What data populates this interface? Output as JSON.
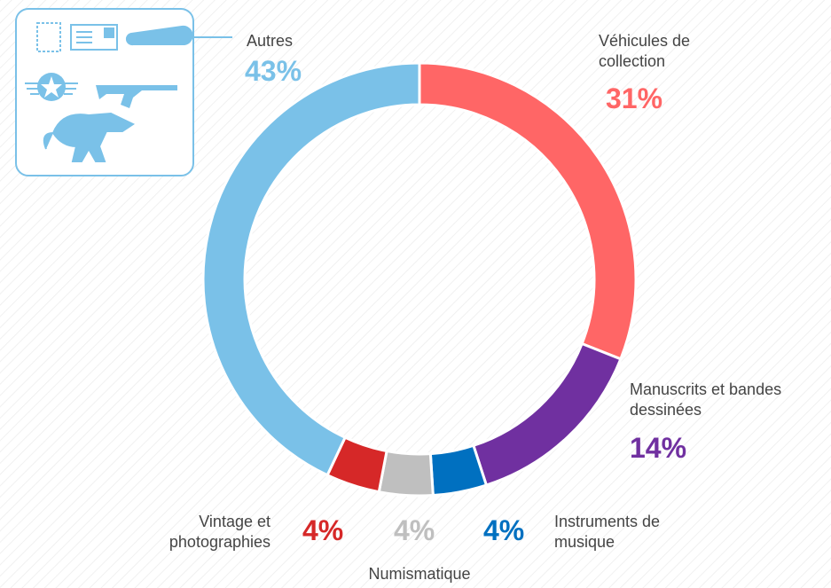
{
  "chart_data": {
    "type": "donut",
    "categories": [
      "Véhicules de collection",
      "Manuscrits et bandes dessinées",
      "Instruments de musique",
      "Numismatique",
      "Vintage et photographies",
      "Autres"
    ],
    "values": [
      31,
      14,
      4,
      4,
      4,
      43
    ],
    "value_labels": [
      "31%",
      "14%",
      "4%",
      "4%",
      "4%",
      "43%"
    ],
    "colors": [
      "#ff6666",
      "#7030a0",
      "#0070c0",
      "#bfbfbf",
      "#d62828",
      "#7ac1e8"
    ]
  }
}
